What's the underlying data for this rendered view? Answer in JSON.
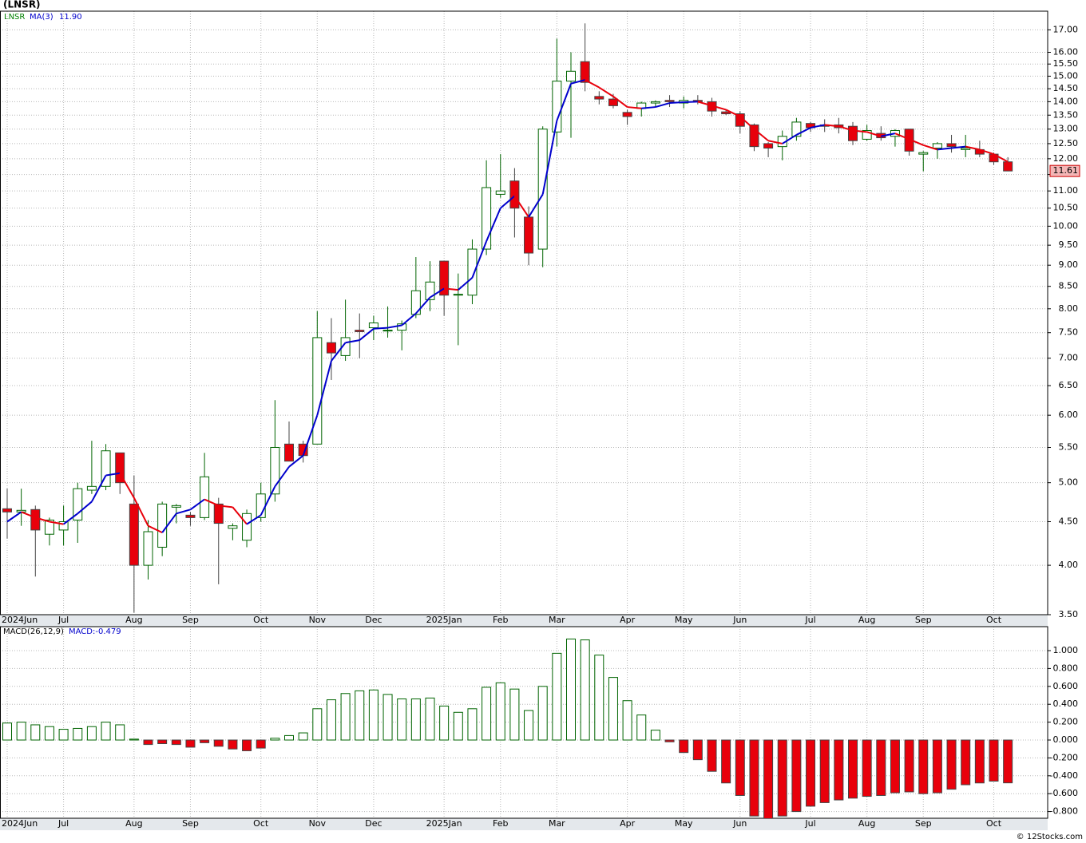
{
  "chart_data": [
    {
      "type": "candlestick",
      "title": "(LNSR)",
      "categories": [
        "2024Jun",
        null,
        null,
        null,
        "Jul",
        null,
        null,
        null,
        null,
        "Aug",
        null,
        null,
        null,
        "Sep",
        null,
        null,
        null,
        null,
        "Oct",
        null,
        null,
        null,
        "Nov",
        null,
        null,
        null,
        "Dec",
        null,
        null,
        null,
        null,
        "2025Jan",
        null,
        null,
        null,
        "Feb",
        null,
        null,
        null,
        "Mar",
        null,
        null,
        null,
        null,
        "Apr",
        null,
        null,
        null,
        "May",
        null,
        null,
        null,
        "Jun",
        null,
        null,
        null,
        null,
        "Jul",
        null,
        null,
        null,
        "Aug",
        null,
        null,
        null,
        "Sep",
        null,
        null,
        null,
        null,
        "Oct",
        null
      ],
      "series": [
        {
          "name": "LNSR",
          "up_color": "#006400",
          "down_color": "#e8000b",
          "open": [
            4.66,
            4.62,
            4.65,
            4.35,
            4.4,
            4.52,
            4.9,
            4.95,
            5.42,
            4.72,
            4.0,
            4.2,
            4.68,
            4.58,
            4.55,
            4.72,
            4.42,
            4.28,
            4.55,
            4.85,
            5.55,
            5.55,
            5.55,
            7.3,
            7.05,
            7.55,
            7.6,
            7.55,
            7.55,
            7.88,
            8.2,
            9.1,
            8.3,
            8.3,
            9.4,
            10.9,
            11.3,
            10.25,
            9.4,
            12.9,
            14.8,
            15.6,
            14.2,
            14.1,
            13.6,
            13.75,
            13.95,
            14.05,
            13.95,
            14.05,
            14.0,
            13.62,
            13.55,
            13.15,
            12.5,
            12.4,
            12.75,
            13.2,
            13.15,
            13.15,
            13.1,
            12.65,
            12.85,
            12.75,
            13.0,
            12.15,
            12.35,
            12.5,
            12.3,
            12.3,
            12.15,
            11.9
          ],
          "high": [
            4.92,
            4.92,
            4.7,
            4.55,
            4.7,
            5.0,
            5.6,
            5.55,
            5.42,
            5.1,
            4.52,
            4.75,
            4.72,
            4.62,
            5.42,
            4.8,
            4.48,
            4.65,
            5.0,
            6.25,
            5.9,
            5.6,
            7.95,
            7.8,
            8.2,
            7.9,
            7.85,
            8.05,
            7.75,
            9.2,
            9.1,
            9.1,
            8.8,
            9.65,
            11.95,
            12.15,
            11.7,
            10.55,
            13.1,
            16.6,
            16.0,
            17.3,
            14.4,
            14.3,
            13.7,
            14.0,
            14.05,
            14.25,
            14.2,
            14.25,
            14.15,
            13.7,
            13.65,
            13.2,
            12.55,
            12.95,
            13.4,
            13.25,
            13.35,
            13.4,
            13.25,
            13.15,
            13.1,
            13.0,
            13.0,
            12.25,
            12.55,
            12.8,
            12.8,
            12.6,
            12.2,
            12.05
          ],
          "low": [
            4.3,
            4.45,
            3.88,
            4.22,
            4.22,
            4.25,
            4.85,
            4.9,
            4.85,
            3.52,
            3.85,
            4.1,
            4.48,
            4.45,
            4.52,
            3.8,
            4.28,
            4.2,
            4.5,
            4.75,
            5.3,
            5.28,
            5.55,
            6.6,
            6.95,
            7.0,
            7.35,
            7.4,
            7.15,
            7.8,
            7.95,
            7.85,
            7.25,
            8.1,
            9.25,
            10.8,
            9.7,
            9.0,
            8.95,
            12.4,
            12.7,
            14.4,
            13.9,
            13.75,
            13.15,
            13.45,
            13.8,
            13.8,
            13.75,
            13.9,
            13.45,
            13.5,
            12.85,
            12.25,
            12.05,
            11.95,
            12.6,
            12.9,
            12.9,
            12.85,
            12.45,
            12.6,
            12.6,
            12.4,
            12.1,
            11.6,
            12.0,
            12.2,
            12.05,
            12.05,
            11.8,
            11.6
          ],
          "close": [
            4.62,
            4.64,
            4.4,
            4.52,
            4.5,
            4.92,
            4.95,
            5.45,
            5.0,
            4.0,
            4.38,
            4.72,
            4.7,
            4.55,
            5.08,
            4.48,
            4.45,
            4.6,
            4.85,
            5.5,
            5.3,
            5.38,
            7.4,
            7.1,
            7.4,
            7.52,
            7.7,
            7.55,
            7.68,
            8.4,
            8.6,
            8.3,
            8.32,
            9.4,
            11.1,
            11.0,
            10.5,
            9.3,
            13.0,
            14.8,
            15.2,
            14.75,
            14.1,
            13.85,
            13.45,
            13.95,
            14.0,
            14.0,
            14.05,
            14.0,
            13.65,
            13.55,
            13.1,
            12.4,
            12.35,
            12.75,
            13.25,
            13.05,
            13.1,
            13.05,
            12.6,
            12.95,
            12.7,
            12.95,
            12.25,
            12.2,
            12.5,
            12.4,
            12.35,
            12.15,
            11.9,
            11.61
          ]
        },
        {
          "name": "MA(3)",
          "up_color": "#0000cc",
          "down_color": "#e8000b",
          "values": [
            4.5,
            4.62,
            4.55,
            4.5,
            4.47,
            4.6,
            4.75,
            5.1,
            5.13,
            4.8,
            4.45,
            4.37,
            4.6,
            4.65,
            4.78,
            4.7,
            4.68,
            4.47,
            4.58,
            4.95,
            5.22,
            5.38,
            6.0,
            6.95,
            7.3,
            7.35,
            7.58,
            7.6,
            7.65,
            7.9,
            8.25,
            8.45,
            8.42,
            8.7,
            9.6,
            10.5,
            10.85,
            10.25,
            10.9,
            13.3,
            14.7,
            14.85,
            14.55,
            14.2,
            13.8,
            13.75,
            13.8,
            13.95,
            13.98,
            14.0,
            13.85,
            13.7,
            13.45,
            13.0,
            12.6,
            12.5,
            12.8,
            13.05,
            13.15,
            13.1,
            12.95,
            12.9,
            12.75,
            12.85,
            12.65,
            12.45,
            12.3,
            12.35,
            12.4,
            12.3,
            12.15,
            11.9
          ],
          "last_label": {
            "value": 11.9,
            "label": "11.90"
          }
        }
      ],
      "last_price": {
        "value": 11.61,
        "label": "11.61"
      },
      "log_scale": true,
      "grid": true,
      "ylim": [
        3.5,
        17.88
      ],
      "yticks": [
        {
          "value": 3.5,
          "label": "3.50"
        },
        {
          "value": 4,
          "label": "4.00"
        },
        {
          "value": 4.5,
          "label": "4.50"
        },
        {
          "value": 5,
          "label": "5.00"
        },
        {
          "value": 5.5,
          "label": "5.50"
        },
        {
          "value": 6,
          "label": "6.00"
        },
        {
          "value": 6.5,
          "label": "6.50"
        },
        {
          "value": 7,
          "label": "7.00"
        },
        {
          "value": 7.5,
          "label": "7.50"
        },
        {
          "value": 8,
          "label": "8.00"
        },
        {
          "value": 8.5,
          "label": "8.50"
        },
        {
          "value": 9,
          "label": "9.00"
        },
        {
          "value": 9.5,
          "label": "9.50"
        },
        {
          "value": 10,
          "label": "10.00"
        },
        {
          "value": 10.5,
          "label": "10.50"
        },
        {
          "value": 11,
          "label": "11.00"
        },
        {
          "value": 11.5,
          "label": "11.50"
        },
        {
          "value": 12,
          "label": "12.00"
        },
        {
          "value": 12.5,
          "label": "12.50"
        },
        {
          "value": 13,
          "label": "13.00"
        },
        {
          "value": 13.5,
          "label": "13.50"
        },
        {
          "value": 14,
          "label": "14.00"
        },
        {
          "value": 14.5,
          "label": "14.50"
        },
        {
          "value": 15,
          "label": "15.00"
        },
        {
          "value": 15.5,
          "label": "15.50"
        },
        {
          "value": 16,
          "label": "16.00"
        },
        {
          "value": 17,
          "label": "17.00"
        }
      ]
    },
    {
      "type": "bar",
      "series": [
        {
          "name": "MACD(26,12,9)",
          "up_color": "#006400",
          "down_color": "#e8000b",
          "values": [
            0.19,
            0.2,
            0.17,
            0.15,
            0.12,
            0.13,
            0.15,
            0.2,
            0.17,
            0.01,
            -0.05,
            -0.04,
            -0.05,
            -0.08,
            -0.03,
            -0.07,
            -0.1,
            -0.12,
            -0.09,
            0.02,
            0.05,
            0.08,
            0.35,
            0.45,
            0.52,
            0.55,
            0.56,
            0.51,
            0.46,
            0.46,
            0.47,
            0.38,
            0.31,
            0.35,
            0.59,
            0.64,
            0.57,
            0.33,
            0.6,
            0.97,
            1.13,
            1.12,
            0.95,
            0.7,
            0.44,
            0.28,
            0.11,
            -0.02,
            -0.14,
            -0.22,
            -0.35,
            -0.48,
            -0.62,
            -0.85,
            -0.88,
            -0.85,
            -0.8,
            -0.74,
            -0.7,
            -0.67,
            -0.65,
            -0.63,
            -0.62,
            -0.59,
            -0.58,
            -0.6,
            -0.59,
            -0.55,
            -0.5,
            -0.48,
            -0.46,
            -0.479
          ],
          "last_label": "MACD:-0.479"
        }
      ],
      "grid": true,
      "ylim": [
        -0.875,
        1.268
      ],
      "yticks": [
        {
          "value": -0.8,
          "label": "-0.800"
        },
        {
          "value": -0.6,
          "label": "-0.600"
        },
        {
          "value": -0.4,
          "label": "-0.400"
        },
        {
          "value": -0.2,
          "label": "-0.200"
        },
        {
          "value": 0,
          "label": "0.000"
        },
        {
          "value": 0.2,
          "label": "0.200"
        },
        {
          "value": 0.4,
          "label": "0.400"
        },
        {
          "value": 0.6,
          "label": "0.600"
        },
        {
          "value": 0.8,
          "label": "0.800"
        },
        {
          "value": 1,
          "label": "1.000"
        }
      ]
    }
  ],
  "footer": "© 12Stocks.com"
}
